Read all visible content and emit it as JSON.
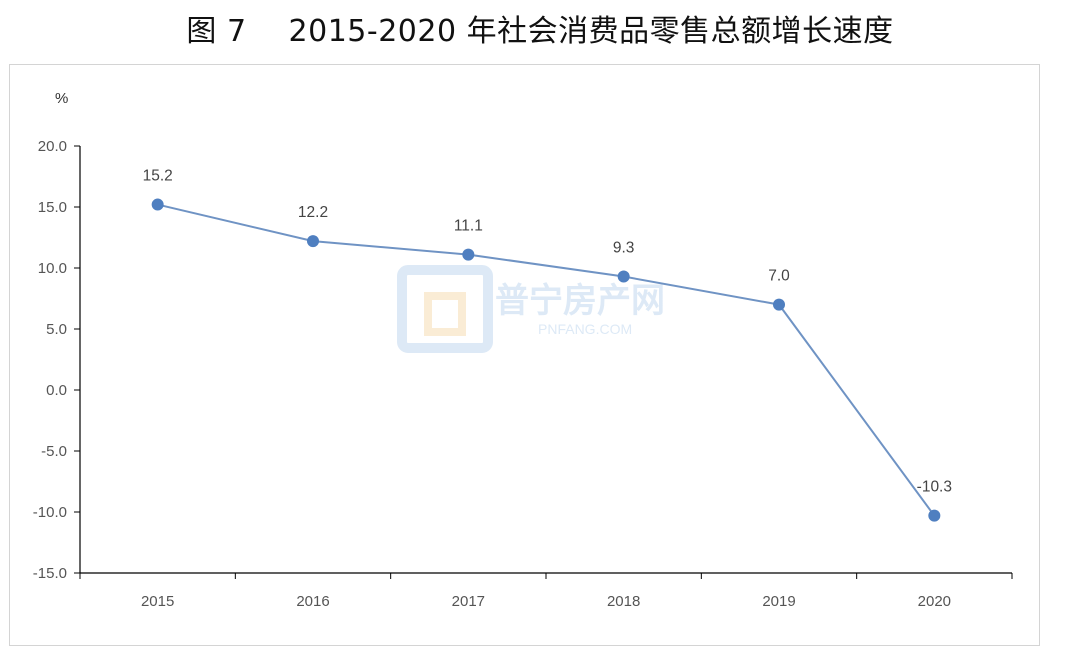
{
  "figure": {
    "number": "图 7",
    "title": "2015-2020 年社会消费品零售总额增长速度"
  },
  "watermark": {
    "name": "普宁房产网",
    "url": "PNFANG.COM"
  },
  "chart_data": {
    "type": "line",
    "title": "2015-2020 年社会消费品零售总额增长速度",
    "ylabel": "%",
    "xlabel": "",
    "categories": [
      "2015",
      "2016",
      "2017",
      "2018",
      "2019",
      "2020"
    ],
    "series": [
      {
        "values": [
          15.2,
          12.2,
          11.1,
          9.3,
          7.0,
          -10.3
        ],
        "labels": [
          "15.2",
          "12.2",
          "11.1",
          "9.3",
          "7.0",
          "-10.3"
        ]
      }
    ],
    "ylim": [
      -15,
      20
    ],
    "yticks": [
      "20.0",
      "15.0",
      "10.0",
      "5.0",
      "0.0",
      "-5.0",
      "-10.0",
      "-15.0"
    ],
    "ytick_values": [
      20,
      15,
      10,
      5,
      0,
      -5,
      -10,
      -15
    ],
    "grid": false,
    "legend": "none",
    "line_color": "#6f93c4",
    "marker_color": "#4f7fc0"
  }
}
